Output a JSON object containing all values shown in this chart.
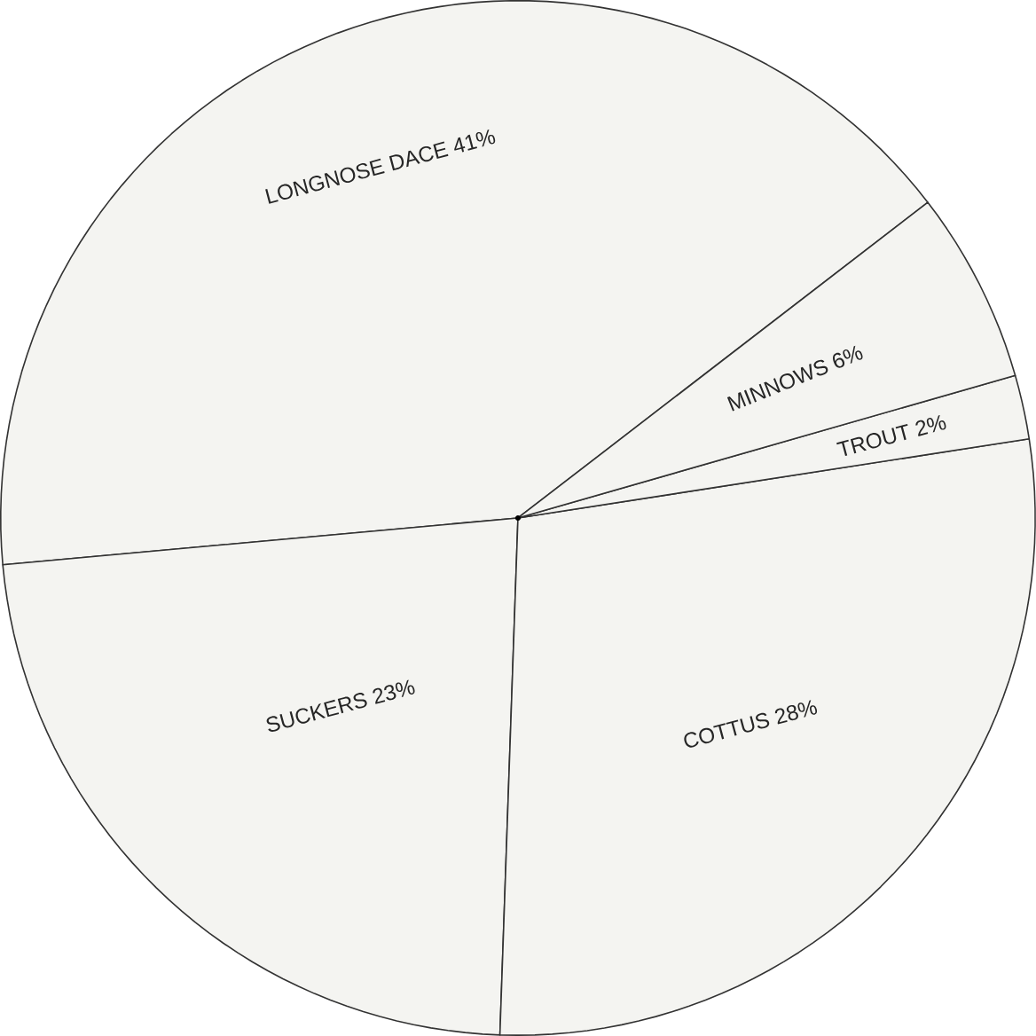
{
  "chart_data": {
    "type": "pie",
    "categories": [
      "LONGNOSE DACE",
      "SUCKERS",
      "COTTUS",
      "TROUT",
      "MINNOWS"
    ],
    "values": [
      41,
      23,
      28,
      2,
      6
    ],
    "value_labels": [
      "41%",
      "23%",
      "28%",
      "2%",
      "6%"
    ],
    "colors": [
      "#f4f4f1",
      "#f4f4f1",
      "#f4f4f1",
      "#f4f4f1",
      "#f4f4f1"
    ]
  }
}
